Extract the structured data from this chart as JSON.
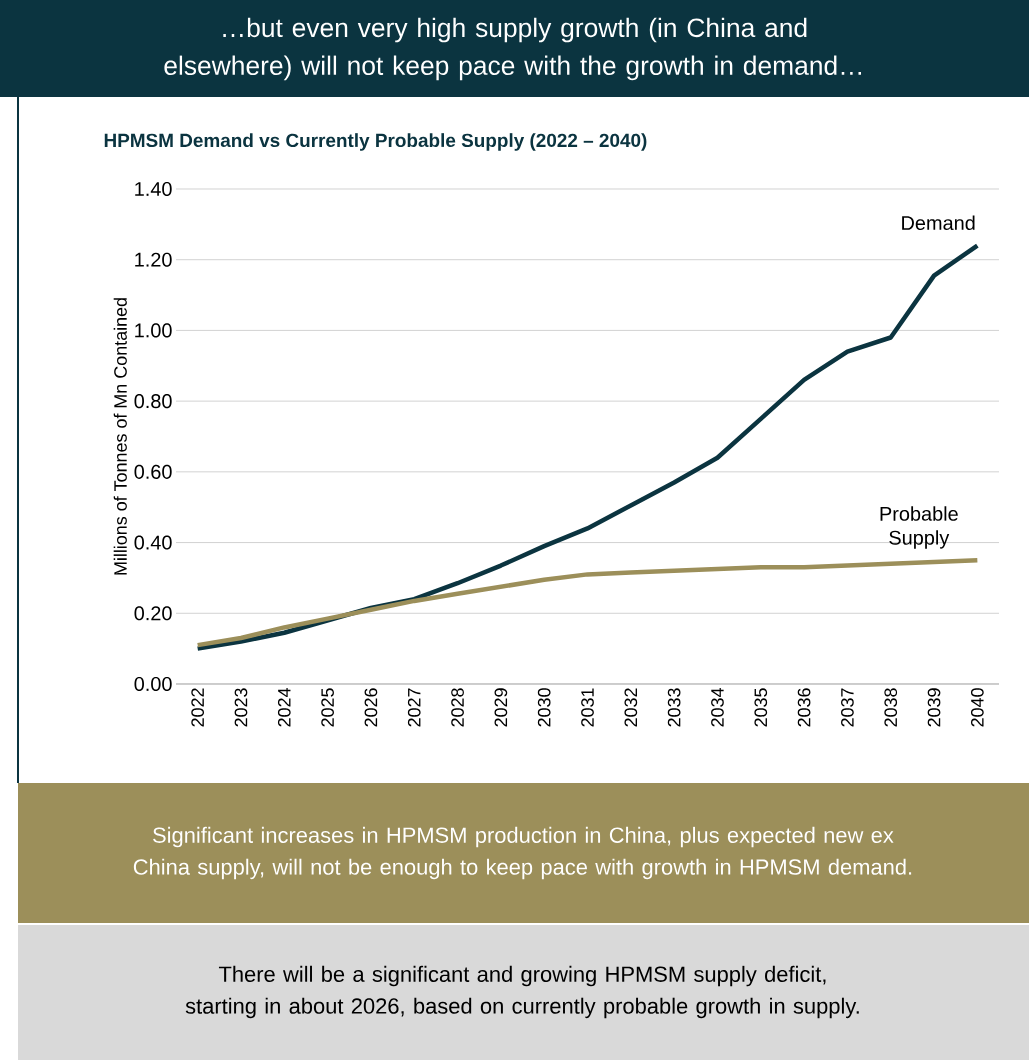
{
  "chart_data": {
    "type": "line",
    "title": "…but even very high supply growth (in China and elsewhere) will not keep pace with the growth in demand…",
    "subtitle": "HPMSM Demand vs Currently Probable Supply (2022 – 2040)",
    "ylabel": "Millions of Tonnes of Mn Contained",
    "categories": [
      "2022",
      "2023",
      "2024",
      "2025",
      "2026",
      "2027",
      "2028",
      "2029",
      "2030",
      "2031",
      "2032",
      "2033",
      "2034",
      "2035",
      "2036",
      "2037",
      "2038",
      "2039",
      "2040"
    ],
    "series": [
      {
        "name": "Demand",
        "color": "#0b3440",
        "values": [
          0.1,
          0.12,
          0.145,
          0.18,
          0.215,
          0.24,
          0.285,
          0.335,
          0.39,
          0.44,
          0.505,
          0.57,
          0.64,
          0.75,
          0.86,
          0.94,
          0.98,
          1.155,
          1.24
        ]
      },
      {
        "name": "Probable Supply",
        "color": "#9c8f5a",
        "values": [
          0.11,
          0.13,
          0.16,
          0.185,
          0.21,
          0.235,
          0.255,
          0.275,
          0.295,
          0.31,
          0.315,
          0.32,
          0.325,
          0.33,
          0.33,
          0.335,
          0.34,
          0.345,
          0.35
        ]
      }
    ],
    "ylim": [
      0,
      1.4
    ],
    "yticks": [
      {
        "value": 0,
        "label": "0.00"
      },
      {
        "value": 0.2,
        "label": "0.20"
      },
      {
        "value": 0.4,
        "label": "0.40"
      },
      {
        "value": 0.6,
        "label": "0.60"
      },
      {
        "value": 0.8,
        "label": "0.80"
      },
      {
        "value": 1.0,
        "label": "1.00"
      },
      {
        "value": 1.2,
        "label": "1.20"
      },
      {
        "value": 1.4,
        "label": "1.40"
      }
    ],
    "grid": "y",
    "legend": false,
    "annotations": [
      "Significant increases in HPMSM production in China, plus expected new ex China supply, will not be enough to keep pace with growth in HPMSM demand.",
      "There will be a significant and growing HPMSM supply deficit, starting in about 2026, based on currently probable growth in supply."
    ]
  }
}
